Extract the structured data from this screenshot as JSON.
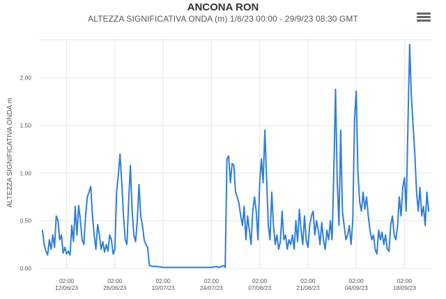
{
  "chart_data": {
    "type": "line",
    "title": "ANCONA RON",
    "subtitle": "ALTEZZA SIGNIFICATIVA ONDA (m)    1/6/23 00:00 - 29/9/23 08:30 GMT",
    "ylabel": "ALTEZZA SIGNIFICATIVA ONDA m",
    "xlabel": "",
    "ylim": [
      0,
      2.4
    ],
    "yticks": [
      "0.00",
      "0.50",
      "1.00",
      "1.50",
      "2.00"
    ],
    "xticks": [
      {
        "time": "02:00",
        "date": "12/06/23"
      },
      {
        "time": "02:00",
        "date": "26/06/23"
      },
      {
        "time": "02:00",
        "date": "10/07/23"
      },
      {
        "time": "02:00",
        "date": "24/07/23"
      },
      {
        "time": "02:00",
        "date": "07/08/23"
      },
      {
        "time": "02:00",
        "date": "21/08/23"
      },
      {
        "time": "02:00",
        "date": "04/09/23"
      },
      {
        "time": "02:00",
        "date": "18/09/23"
      }
    ],
    "grid": true,
    "line_color": "#2f7ed8",
    "series": [
      {
        "values": [
          [
            1.0,
            0.4
          ],
          [
            1.5,
            0.25
          ],
          [
            2.0,
            0.18
          ],
          [
            2.5,
            0.14
          ],
          [
            3.0,
            0.3
          ],
          [
            3.5,
            0.2
          ],
          [
            4.0,
            0.35
          ],
          [
            4.5,
            0.22
          ],
          [
            5.0,
            0.55
          ],
          [
            5.5,
            0.5
          ],
          [
            6.0,
            0.3
          ],
          [
            6.5,
            0.35
          ],
          [
            7.0,
            0.16
          ],
          [
            7.5,
            0.22
          ],
          [
            8.0,
            0.15
          ],
          [
            8.5,
            0.18
          ],
          [
            9.0,
            0.14
          ],
          [
            9.5,
            0.45
          ],
          [
            10.0,
            0.28
          ],
          [
            10.5,
            0.65
          ],
          [
            11.0,
            0.35
          ],
          [
            11.5,
            0.66
          ],
          [
            12.0,
            0.5
          ],
          [
            12.5,
            0.3
          ],
          [
            13.0,
            0.25
          ],
          [
            13.5,
            0.55
          ],
          [
            14.0,
            0.75
          ],
          [
            14.5,
            0.8
          ],
          [
            15.0,
            0.86
          ],
          [
            15.5,
            0.55
          ],
          [
            16.0,
            0.35
          ],
          [
            16.5,
            0.2
          ],
          [
            17.0,
            0.46
          ],
          [
            17.5,
            0.35
          ],
          [
            18.0,
            0.2
          ],
          [
            18.5,
            0.28
          ],
          [
            19.0,
            0.17
          ],
          [
            19.5,
            0.25
          ],
          [
            20.0,
            0.18
          ],
          [
            20.5,
            0.35
          ],
          [
            21.0,
            0.3
          ],
          [
            21.5,
            0.15
          ],
          [
            22.0,
            0.2
          ],
          [
            22.5,
            0.8
          ],
          [
            23.0,
            0.98
          ],
          [
            23.5,
            1.2
          ],
          [
            24.0,
            0.9
          ],
          [
            24.5,
            0.55
          ],
          [
            25.0,
            0.3
          ],
          [
            25.5,
            0.25
          ],
          [
            26.0,
            0.7
          ],
          [
            26.5,
            1.08
          ],
          [
            27.0,
            0.62
          ],
          [
            27.5,
            0.35
          ],
          [
            28.0,
            0.28
          ],
          [
            28.5,
            0.5
          ],
          [
            29.0,
            0.88
          ],
          [
            29.5,
            0.55
          ],
          [
            30.0,
            0.45
          ],
          [
            30.5,
            0.3
          ],
          [
            31.0,
            0.25
          ],
          [
            31.5,
            0.22
          ],
          [
            32.0,
            0.03
          ],
          [
            33.0,
            0.02
          ],
          [
            34.0,
            0.02
          ],
          [
            36.0,
            0.01
          ],
          [
            40.0,
            0.01
          ],
          [
            45.0,
            0.01
          ],
          [
            50.0,
            0.01
          ],
          [
            51.5,
            0.02
          ],
          [
            52.0,
            0.01
          ],
          [
            53.0,
            0.02
          ],
          [
            53.5,
            0.03
          ],
          [
            54.0,
            0.01
          ],
          [
            54.5,
            1.15
          ],
          [
            55.0,
            1.18
          ],
          [
            55.5,
            0.9
          ],
          [
            56.0,
            1.1
          ],
          [
            56.5,
            1.08
          ],
          [
            57.0,
            0.8
          ],
          [
            57.5,
            0.75
          ],
          [
            58.0,
            0.68
          ],
          [
            58.5,
            0.55
          ],
          [
            59.0,
            0.45
          ],
          [
            59.5,
            0.65
          ],
          [
            60.0,
            0.3
          ],
          [
            60.5,
            0.55
          ],
          [
            61.0,
            0.4
          ],
          [
            61.5,
            0.25
          ],
          [
            62.0,
            0.6
          ],
          [
            62.5,
            0.75
          ],
          [
            63.0,
            0.6
          ],
          [
            63.5,
            0.3
          ],
          [
            64.0,
            0.9
          ],
          [
            64.5,
            1.15
          ],
          [
            65.0,
            0.9
          ],
          [
            65.5,
            1.45
          ],
          [
            66.0,
            0.95
          ],
          [
            66.5,
            0.45
          ],
          [
            67.0,
            0.3
          ],
          [
            67.5,
            0.8
          ],
          [
            68.0,
            0.45
          ],
          [
            68.5,
            0.25
          ],
          [
            69.0,
            0.35
          ],
          [
            69.5,
            0.2
          ],
          [
            70.0,
            0.28
          ],
          [
            70.5,
            0.6
          ],
          [
            71.0,
            0.3
          ],
          [
            71.5,
            0.35
          ],
          [
            72.0,
            0.2
          ],
          [
            72.5,
            0.3
          ],
          [
            73.0,
            0.25
          ],
          [
            73.5,
            0.35
          ],
          [
            74.0,
            0.2
          ],
          [
            74.5,
            0.5
          ],
          [
            75.0,
            0.28
          ],
          [
            75.5,
            0.62
          ],
          [
            76.0,
            0.4
          ],
          [
            76.5,
            0.25
          ],
          [
            77.0,
            0.55
          ],
          [
            77.5,
            0.3
          ],
          [
            78.0,
            0.22
          ],
          [
            78.5,
            0.45
          ],
          [
            79.0,
            0.55
          ],
          [
            79.5,
            0.6
          ],
          [
            80.0,
            0.35
          ],
          [
            80.5,
            0.5
          ],
          [
            81.0,
            0.4
          ],
          [
            81.5,
            0.25
          ],
          [
            82.0,
            0.48
          ],
          [
            82.5,
            0.3
          ],
          [
            83.0,
            0.2
          ],
          [
            83.5,
            0.4
          ],
          [
            84.0,
            0.3
          ],
          [
            84.5,
            0.5
          ],
          [
            85.0,
            0.3
          ],
          [
            85.5,
            1.0
          ],
          [
            86.0,
            1.88
          ],
          [
            86.5,
            0.9
          ],
          [
            87.0,
            0.45
          ],
          [
            87.5,
            1.45
          ],
          [
            88.0,
            0.6
          ],
          [
            88.5,
            0.45
          ],
          [
            89.0,
            0.3
          ],
          [
            89.5,
            0.35
          ],
          [
            90.0,
            0.45
          ],
          [
            90.5,
            0.25
          ],
          [
            91.0,
            0.5
          ],
          [
            91.5,
            1.55
          ],
          [
            92.0,
            1.86
          ],
          [
            92.5,
            1.0
          ],
          [
            93.0,
            0.7
          ],
          [
            93.5,
            0.6
          ],
          [
            94.0,
            0.8
          ],
          [
            94.5,
            0.62
          ],
          [
            95.0,
            0.75
          ],
          [
            95.5,
            0.55
          ],
          [
            96.0,
            0.4
          ],
          [
            96.5,
            0.3
          ],
          [
            97.0,
            0.35
          ],
          [
            97.5,
            0.2
          ],
          [
            98.0,
            0.15
          ],
          [
            98.5,
            0.4
          ],
          [
            99.0,
            0.3
          ],
          [
            99.5,
            0.38
          ],
          [
            100.0,
            0.25
          ],
          [
            100.5,
            0.35
          ],
          [
            101.0,
            0.2
          ],
          [
            101.5,
            0.18
          ],
          [
            102.0,
            0.45
          ],
          [
            102.5,
            0.55
          ],
          [
            103.0,
            0.35
          ],
          [
            103.5,
            0.3
          ],
          [
            104.0,
            0.45
          ],
          [
            104.5,
            0.75
          ],
          [
            105.0,
            0.55
          ],
          [
            105.5,
            0.85
          ],
          [
            106.0,
            0.95
          ],
          [
            106.5,
            0.6
          ],
          [
            107.0,
            1.5
          ],
          [
            107.5,
            2.35
          ],
          [
            108.0,
            1.8
          ],
          [
            108.5,
            1.5
          ],
          [
            109.0,
            1.2
          ],
          [
            109.5,
            0.8
          ],
          [
            110.0,
            0.6
          ],
          [
            110.5,
            0.85
          ],
          [
            111.0,
            0.55
          ],
          [
            111.5,
            0.65
          ],
          [
            112.0,
            0.45
          ],
          [
            112.5,
            0.8
          ],
          [
            113.0,
            0.6
          ]
        ]
      }
    ]
  }
}
